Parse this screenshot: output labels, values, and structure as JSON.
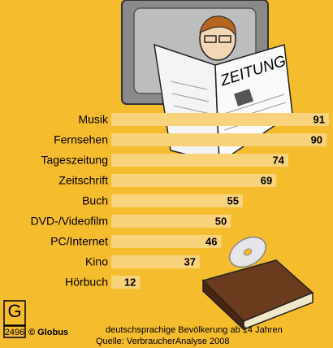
{
  "chart_data": {
    "type": "hbar",
    "categories": [
      "Musik",
      "Fernsehen",
      "Tageszeitung",
      "Zeitschrift",
      "Buch",
      "DVD-/Videofilm",
      "PC/Internet",
      "Kino",
      "Hörbuch"
    ],
    "values": [
      91,
      90,
      74,
      69,
      55,
      50,
      46,
      37,
      12
    ],
    "color": "#f8d37c",
    "illustration_text": "ZEITUNG",
    "note": "deutschsprachige Bevölkerung ab 14 Jahren",
    "source": "Quelle: VerbraucherAnalyse 2008",
    "copyright": "© Globus",
    "logo_letter": "G",
    "graphic_number": "2496"
  }
}
